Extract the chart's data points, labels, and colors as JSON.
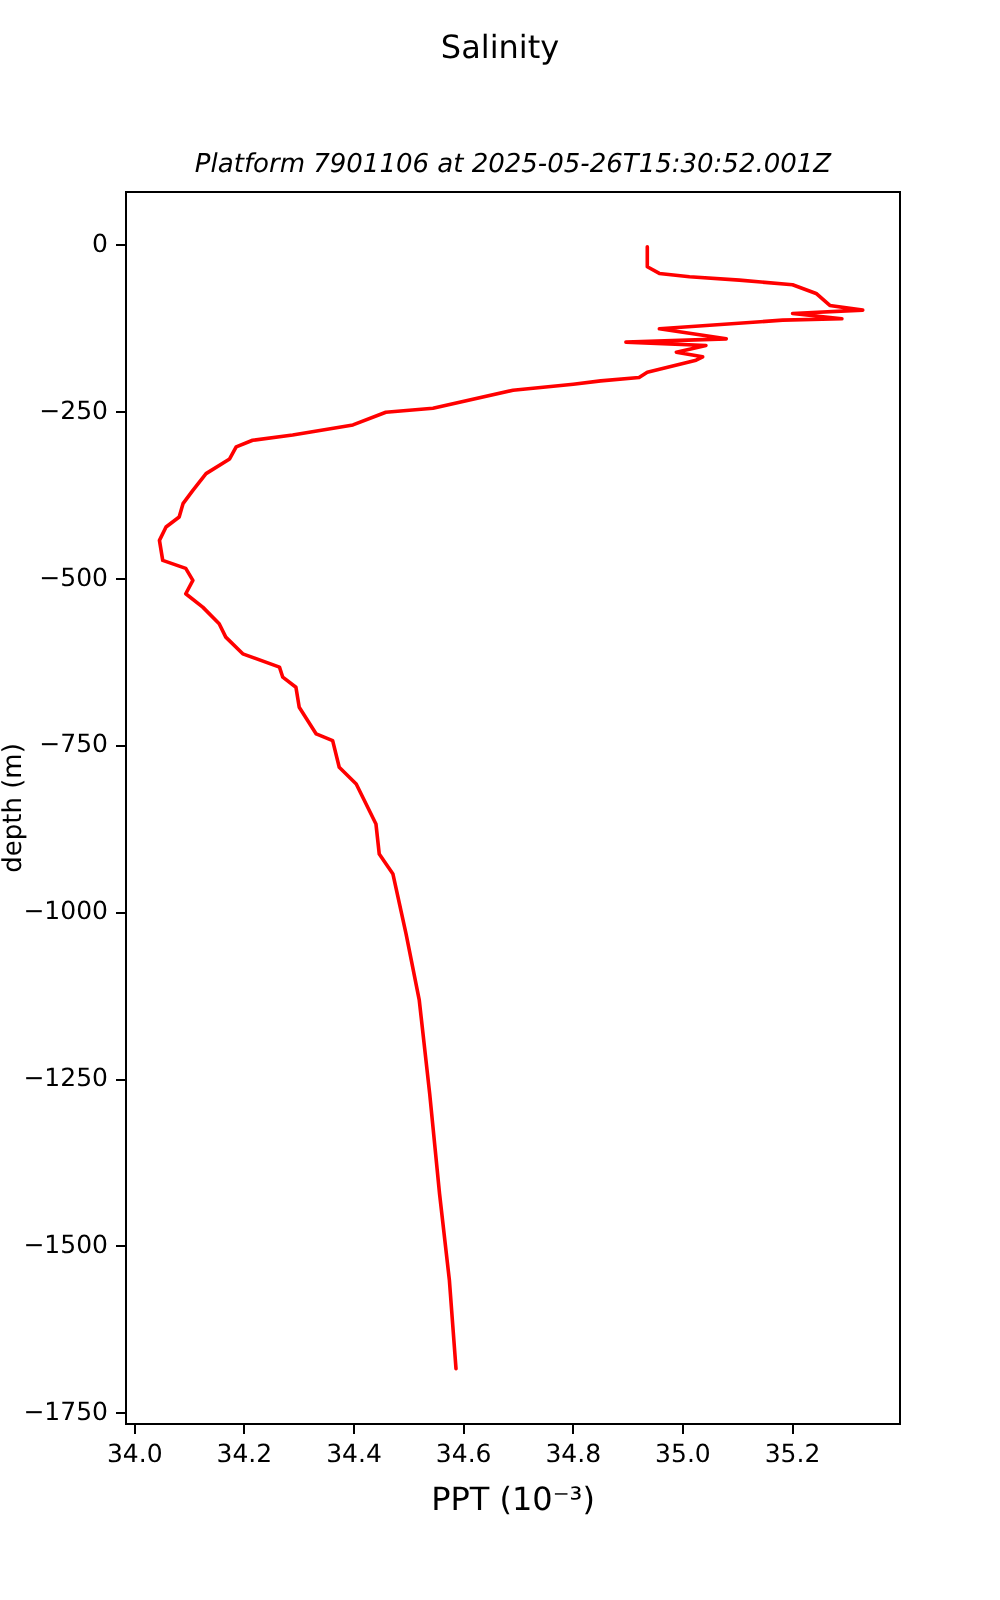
{
  "chart_data": {
    "type": "line",
    "title": "Salinity",
    "subtitle": "Platform 7901106 at 2025-05-26T15:30:52.001Z",
    "xlabel": "PPT (10⁻³)",
    "ylabel": "depth (m)",
    "color": "#ff0000",
    "x": [
      34.935,
      34.935,
      34.957,
      35.012,
      35.103,
      35.2,
      35.243,
      35.268,
      35.328,
      35.2,
      35.29,
      35.182,
      34.957,
      35.079,
      34.896,
      35.042,
      34.988,
      35.036,
      35.024,
      34.935,
      34.92,
      34.85,
      34.8,
      34.69,
      34.544,
      34.458,
      34.398,
      34.288,
      34.215,
      34.185,
      34.173,
      34.13,
      34.106,
      34.088,
      34.081,
      34.057,
      34.045,
      34.051,
      34.093,
      34.106,
      34.093,
      34.124,
      34.154,
      34.166,
      34.197,
      34.264,
      34.27,
      34.294,
      34.3,
      34.331,
      34.361,
      34.373,
      34.404,
      34.44,
      34.446,
      34.471,
      34.495,
      34.519,
      34.538,
      34.556,
      34.574,
      34.586
    ],
    "values": [
      -2,
      -32,
      -42,
      -47,
      -52,
      -59,
      -72,
      -90,
      -97,
      -102,
      -110,
      -112,
      -125,
      -140,
      -145,
      -150,
      -160,
      -167,
      -172,
      -190,
      -198,
      -203,
      -208,
      -217,
      -244,
      -250,
      -269,
      -284,
      -292,
      -302,
      -320,
      -342,
      -367,
      -387,
      -407,
      -422,
      -442,
      -472,
      -484,
      -502,
      -522,
      -542,
      -567,
      -587,
      -612,
      -632,
      -647,
      -662,
      -692,
      -732,
      -742,
      -782,
      -807,
      -867,
      -912,
      -942,
      -1032,
      -1131,
      -1271,
      -1421,
      -1551,
      -1683
    ],
    "xlim": [
      33.984,
      35.396
    ],
    "xticks": [
      {
        "value": 34,
        "label": "34.0"
      },
      34.2,
      34.4,
      34.6,
      34.8,
      {
        "value": 35,
        "label": "35.0"
      },
      35.2
    ],
    "ylim": [
      -1766,
      80
    ],
    "yticks": [
      -1750,
      -1500,
      -1250,
      -1000,
      -750,
      -500,
      -250,
      0
    ]
  }
}
